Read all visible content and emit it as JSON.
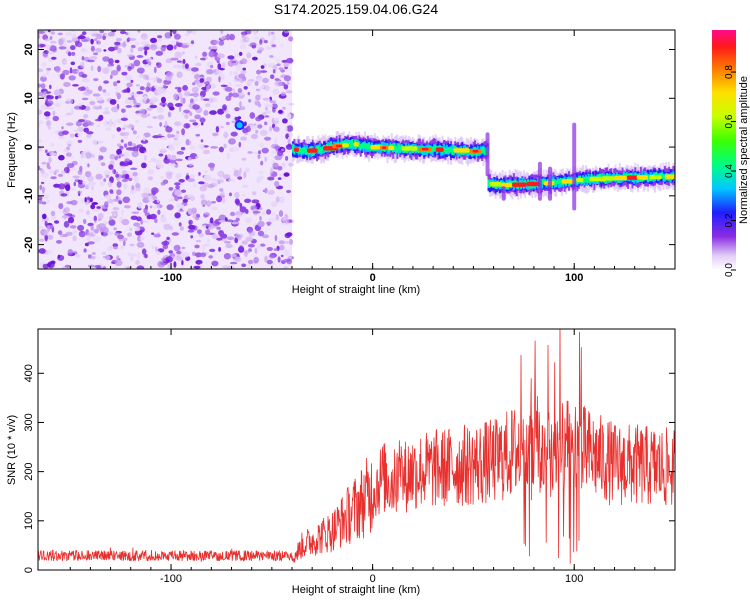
{
  "title": "S174.2025.159.04.06.G24",
  "chart_data": [
    {
      "type": "heatmap",
      "xlabel": "Height of straight line (km)",
      "ylabel": "Frequency (Hz)",
      "xlim": [
        -166,
        150
      ],
      "ylim": [
        -25,
        24
      ],
      "xticks": [
        -100,
        0,
        100
      ],
      "yticks": [
        -20,
        -10,
        0,
        10,
        20
      ],
      "colorbar": {
        "label": "Normalized spectral amplitude",
        "range": [
          0,
          0.97
        ],
        "ticks": [
          0.0,
          0.2,
          0.4,
          0.6,
          0.8
        ]
      },
      "noise_region_x": [
        -166,
        -40
      ],
      "tracks": [
        {
          "x": [
            -40,
            -30,
            -20,
            -10,
            0,
            10,
            20,
            30,
            40,
            50,
            57
          ],
          "y": [
            -0.5,
            -0.8,
            0.2,
            0.6,
            -0.1,
            -0.2,
            -0.4,
            -0.5,
            -0.7,
            -0.9,
            -0.8
          ]
        },
        {
          "x": [
            57,
            65,
            75,
            85,
            95,
            105,
            115,
            125,
            135,
            150
          ],
          "y": [
            -7.6,
            -7.8,
            -7.6,
            -7.4,
            -7.0,
            -6.6,
            -6.4,
            -6.3,
            -6.2,
            -6.0
          ]
        }
      ],
      "blob": {
        "x": -66,
        "y": 4.5
      }
    },
    {
      "type": "line",
      "xlabel": "Height of straight line (km)",
      "ylabel": "SNR (10 * v/v)",
      "xlim": [
        -166,
        150
      ],
      "ylim": [
        0,
        490
      ],
      "xticks": [
        -100,
        0,
        100
      ],
      "yticks": [
        0,
        100,
        200,
        300,
        400
      ],
      "color": "#e8302e",
      "profile": {
        "x": [
          -166,
          -40,
          -35,
          -20,
          -10,
          0,
          5,
          10,
          20,
          40,
          60,
          70,
          75,
          80,
          90,
          100,
          105,
          120,
          140,
          150
        ],
        "y": [
          20,
          20,
          50,
          80,
          120,
          160,
          190,
          175,
          200,
          210,
          220,
          240,
          250,
          230,
          240,
          250,
          240,
          215,
          210,
          205
        ]
      }
    }
  ]
}
